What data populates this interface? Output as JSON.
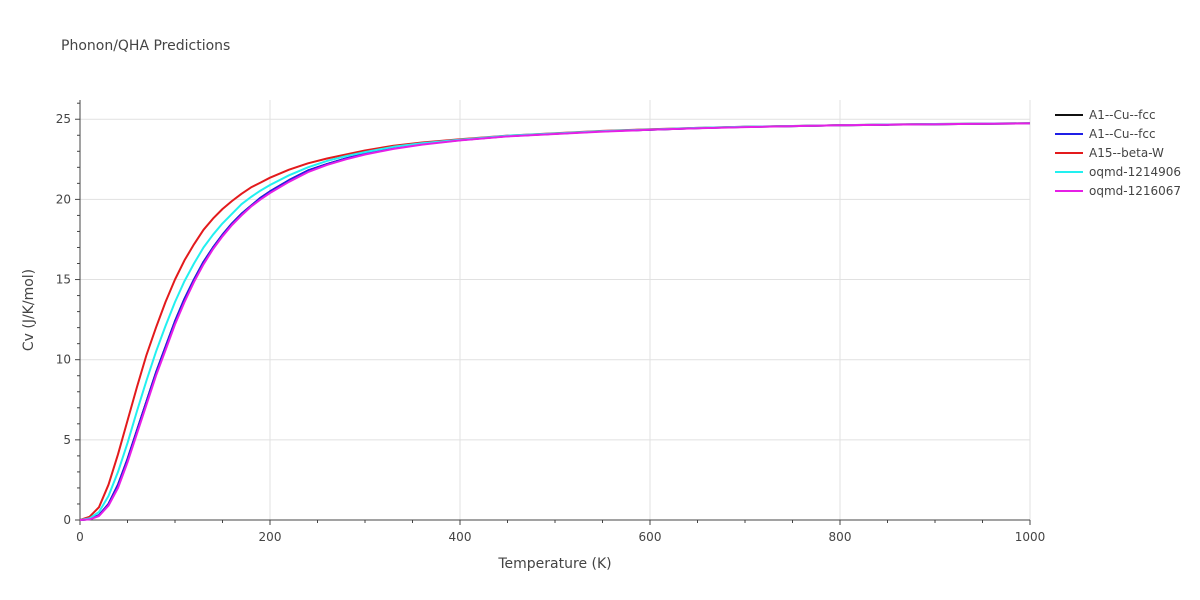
{
  "chart_data": {
    "type": "line",
    "title": "Phonon/QHA Predictions",
    "xlabel": "Temperature (K)",
    "ylabel": "Cv (J/K/mol)",
    "xlim": [
      0,
      1000
    ],
    "ylim": [
      0,
      26.2
    ],
    "x_ticks": [
      0,
      200,
      400,
      600,
      800,
      1000
    ],
    "y_ticks": [
      0,
      5,
      10,
      15,
      20,
      25
    ],
    "grid": true,
    "legend_position": "top-right",
    "x": [
      0,
      10,
      20,
      30,
      40,
      50,
      60,
      70,
      80,
      90,
      100,
      110,
      120,
      130,
      140,
      150,
      160,
      170,
      180,
      190,
      200,
      220,
      240,
      260,
      280,
      300,
      330,
      360,
      400,
      450,
      500,
      550,
      600,
      650,
      700,
      750,
      800,
      850,
      900,
      950,
      1000
    ],
    "series": [
      {
        "name": "A1--Cu--fcc",
        "color": "#111111",
        "values": [
          0,
          0.05,
          0.3,
          1.0,
          2.2,
          3.8,
          5.6,
          7.4,
          9.2,
          10.8,
          12.4,
          13.8,
          15.0,
          16.1,
          17.0,
          17.8,
          18.5,
          19.1,
          19.6,
          20.1,
          20.5,
          21.2,
          21.8,
          22.2,
          22.55,
          22.85,
          23.2,
          23.45,
          23.7,
          23.95,
          24.1,
          24.25,
          24.35,
          24.45,
          24.52,
          24.57,
          24.62,
          24.66,
          24.69,
          24.72,
          24.74
        ]
      },
      {
        "name": "A1--Cu--fcc",
        "color": "#1f1fe6",
        "values": [
          0,
          0.05,
          0.3,
          1.0,
          2.2,
          3.8,
          5.6,
          7.4,
          9.2,
          10.8,
          12.4,
          13.8,
          15.0,
          16.1,
          17.0,
          17.8,
          18.5,
          19.1,
          19.6,
          20.1,
          20.5,
          21.2,
          21.8,
          22.2,
          22.55,
          22.85,
          23.2,
          23.45,
          23.7,
          23.95,
          24.1,
          24.25,
          24.35,
          24.45,
          24.52,
          24.57,
          24.62,
          24.66,
          24.69,
          24.72,
          24.74
        ]
      },
      {
        "name": "A15--beta-W",
        "color": "#e31a1c",
        "values": [
          0,
          0.2,
          0.8,
          2.2,
          4.1,
          6.2,
          8.3,
          10.3,
          12.0,
          13.6,
          15.0,
          16.2,
          17.2,
          18.1,
          18.8,
          19.4,
          19.9,
          20.35,
          20.75,
          21.05,
          21.35,
          21.85,
          22.25,
          22.55,
          22.8,
          23.05,
          23.35,
          23.55,
          23.75,
          23.98,
          24.12,
          24.27,
          24.37,
          24.46,
          24.53,
          24.58,
          24.63,
          24.67,
          24.7,
          24.73,
          24.75
        ]
      },
      {
        "name": "oqmd-1214906",
        "color": "#22f0f0",
        "values": [
          0,
          0.1,
          0.5,
          1.5,
          3.0,
          4.8,
          6.8,
          8.7,
          10.5,
          12.1,
          13.6,
          14.9,
          16.0,
          17.0,
          17.8,
          18.5,
          19.1,
          19.7,
          20.15,
          20.55,
          20.9,
          21.5,
          22.0,
          22.4,
          22.7,
          22.95,
          23.28,
          23.5,
          23.72,
          23.97,
          24.11,
          24.26,
          24.36,
          24.46,
          24.53,
          24.58,
          24.63,
          24.67,
          24.7,
          24.73,
          24.75
        ]
      },
      {
        "name": "oqmd-1216067",
        "color": "#e61fe6",
        "values": [
          0,
          0.04,
          0.25,
          0.9,
          2.0,
          3.6,
          5.4,
          7.2,
          9.0,
          10.6,
          12.2,
          13.6,
          14.85,
          15.95,
          16.9,
          17.7,
          18.4,
          19.0,
          19.55,
          20.0,
          20.4,
          21.1,
          21.7,
          22.15,
          22.5,
          22.8,
          23.15,
          23.42,
          23.68,
          23.93,
          24.08,
          24.23,
          24.34,
          24.44,
          24.51,
          24.57,
          24.62,
          24.66,
          24.69,
          24.72,
          24.74
        ]
      }
    ]
  }
}
